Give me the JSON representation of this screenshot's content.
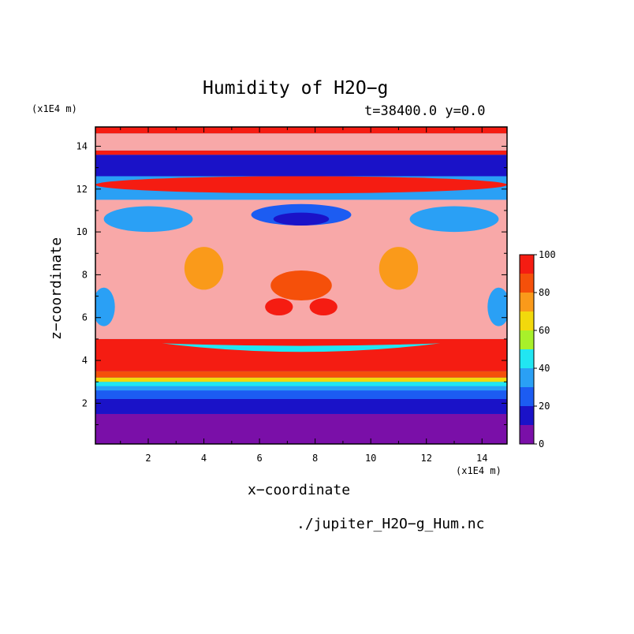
{
  "chart_data": {
    "type": "heatmap",
    "title": "Humidity of H2O−g",
    "subtitle": "t=38400.0 y=0.0",
    "xlabel": "x−coordinate",
    "ylabel": "z−coordinate",
    "x_unit": "(x1E4 m)",
    "z_unit": "(x1E4 m)",
    "file": "./jupiter_H2O−g_Hum.nc",
    "xlim": [
      0.1,
      14.9
    ],
    "ylim": [
      0.1,
      14.9
    ],
    "x_ticks": [
      "2",
      "4",
      "6",
      "8",
      "10",
      "12",
      "14"
    ],
    "y_ticks": [
      "2",
      "4",
      "6",
      "8",
      "10",
      "12",
      "14"
    ],
    "colorbar": {
      "levels": [
        0,
        10,
        20,
        30,
        40,
        50,
        60,
        70,
        80,
        90,
        100
      ],
      "tick_labels": [
        "0",
        "20",
        "40",
        "60",
        "80",
        "100"
      ],
      "colors": [
        "#7a0fa8",
        "#1a12c8",
        "#1c5cf2",
        "#2aa0f5",
        "#21e6f2",
        "#a8f02a",
        "#f2d90c",
        "#fa9a1a",
        "#f5500a",
        "#f51c12",
        "#f8a8a8"
      ]
    },
    "layers": [
      {
        "z_from": 0.1,
        "z_to": 1.5,
        "humidity": 5
      },
      {
        "z_from": 1.5,
        "z_to": 2.2,
        "humidity": 15
      },
      {
        "z_from": 2.2,
        "z_to": 2.6,
        "humidity": 25
      },
      {
        "z_from": 2.6,
        "z_to": 2.8,
        "humidity": 35
      },
      {
        "z_from": 2.8,
        "z_to": 3.0,
        "humidity": 45
      },
      {
        "z_from": 3.0,
        "z_to": 3.2,
        "humidity": 65
      },
      {
        "z_from": 3.2,
        "z_to": 3.5,
        "humidity": 85
      },
      {
        "z_from": 3.5,
        "z_to": 5.0,
        "humidity": 95
      },
      {
        "z_from": 5.0,
        "z_to": 11.5,
        "humidity": 100
      },
      {
        "z_from": 12.6,
        "z_to": 13.6,
        "humidity": 10
      },
      {
        "z_from": 13.6,
        "z_to": 13.8,
        "humidity": 95
      },
      {
        "z_from": 13.8,
        "z_to": 14.6,
        "humidity": 100
      },
      {
        "z_from": 14.6,
        "z_to": 14.9,
        "humidity": 95
      }
    ],
    "features": [
      {
        "shape": "band",
        "z": 4.8,
        "x_from": 2.5,
        "x_to": 12.5,
        "depth": 0.4,
        "humidity": 40
      },
      {
        "shape": "blob",
        "x": 7.5,
        "z": 10.8,
        "rx": 1.8,
        "rz": 0.5,
        "humidity": 20
      },
      {
        "shape": "blob",
        "x": 7.5,
        "z": 10.6,
        "rx": 1.0,
        "rz": 0.3,
        "humidity": 10
      },
      {
        "shape": "blob",
        "x": 7.5,
        "z": 12.2,
        "rx": 7.4,
        "rz": 0.4,
        "humidity": 95
      },
      {
        "shape": "blob",
        "x": 2.0,
        "z": 10.6,
        "rx": 1.6,
        "rz": 0.6,
        "humidity": 30
      },
      {
        "shape": "blob",
        "x": 13.0,
        "z": 10.6,
        "rx": 1.6,
        "rz": 0.6,
        "humidity": 30
      },
      {
        "shape": "blob",
        "x": 0.4,
        "z": 6.5,
        "rx": 0.4,
        "rz": 0.9,
        "humidity": 35
      },
      {
        "shape": "blob",
        "x": 14.6,
        "z": 6.5,
        "rx": 0.4,
        "rz": 0.9,
        "humidity": 35
      },
      {
        "shape": "blob",
        "x": 4.0,
        "z": 8.3,
        "rx": 0.7,
        "rz": 1.0,
        "humidity": 75
      },
      {
        "shape": "blob",
        "x": 11.0,
        "z": 8.3,
        "rx": 0.7,
        "rz": 1.0,
        "humidity": 75
      },
      {
        "shape": "blob",
        "x": 7.5,
        "z": 7.5,
        "rx": 1.1,
        "rz": 0.7,
        "humidity": 85
      },
      {
        "shape": "blob",
        "x": 6.7,
        "z": 6.5,
        "rx": 0.5,
        "rz": 0.4,
        "humidity": 90
      },
      {
        "shape": "blob",
        "x": 8.3,
        "z": 6.5,
        "rx": 0.5,
        "rz": 0.4,
        "humidity": 90
      }
    ]
  }
}
